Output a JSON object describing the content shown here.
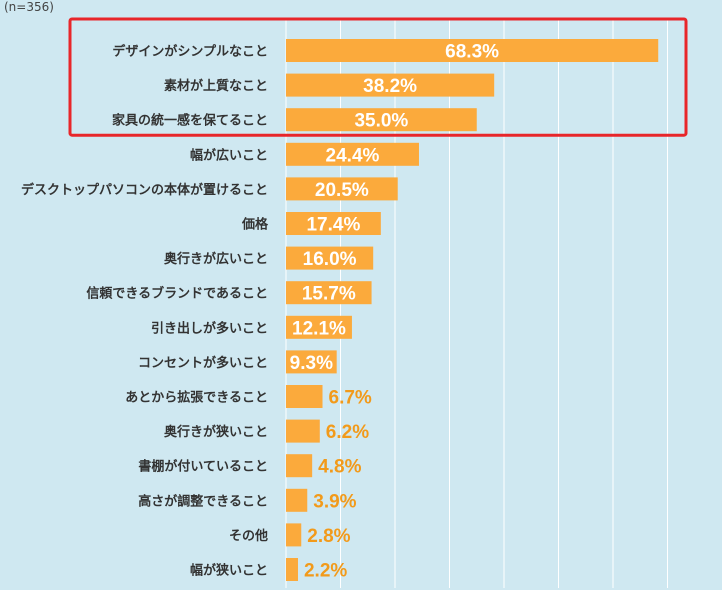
{
  "sample_note": "(n=356)",
  "chart_data": {
    "type": "bar",
    "orientation": "horizontal",
    "categories": [
      "デザインがシンプルなこと",
      "素材が上質なこと",
      "家具の統一感を保てること",
      "幅が広いこと",
      "デスクトップパソコンの本体が置けること",
      "価格",
      "奥行きが広いこと",
      "信頼できるブランドであること",
      "引き出しが多いこと",
      "コンセントが多いこと",
      "あとから拡張できること",
      "奥行きが狭いこと",
      "書棚が付いていること",
      "高さが調整できること",
      "その他",
      "幅が狭いこと"
    ],
    "values": [
      68.3,
      38.2,
      35.0,
      24.4,
      20.5,
      17.4,
      16.0,
      15.7,
      12.1,
      9.3,
      6.7,
      6.2,
      4.8,
      3.9,
      2.8,
      2.2
    ],
    "value_labels": [
      "68.3%",
      "38.2%",
      "35.0%",
      "24.4%",
      "20.5%",
      "17.4%",
      "16.0%",
      "15.7%",
      "12.1%",
      "9.3%",
      "6.7%",
      "6.2%",
      "4.8%",
      "3.9%",
      "2.8%",
      "2.2%"
    ],
    "xlim": [
      0,
      80
    ],
    "grid": true,
    "highlight_indices": [
      0,
      1,
      2
    ],
    "colors": {
      "bar": "#fbaa3c",
      "background": "#cfe8f1",
      "grid": "#ffffff",
      "label_inside": "#ffffff",
      "label_outside": "#f29a1a",
      "category_text": "#333333",
      "highlight_border": "#e8262a"
    }
  }
}
